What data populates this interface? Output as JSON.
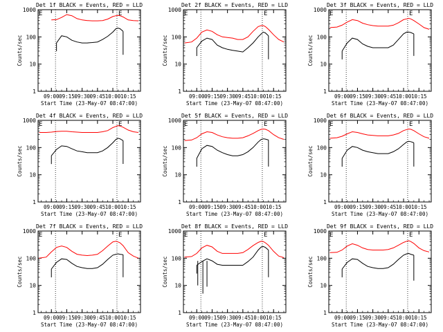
{
  "figure": {
    "xlabel": "Start Time (23-May-07 08:47:00)",
    "ylabel": "Counts/sec",
    "y_ticks": [
      "1",
      "10",
      "100",
      "1000"
    ],
    "x_ticks": [
      "09:00",
      "09:15",
      "09:30",
      "09:45",
      "10:00",
      "10:15"
    ],
    "colors": {
      "events": "#000000",
      "lld": "#ff0000",
      "background": "#ffffff"
    }
  },
  "chart_data": [
    {
      "type": "line",
      "title": "Det 1f BLACK = Events, RED = LLD",
      "xlabel": "Start Time (23-May-07 08:47:00)",
      "ylabel": "Counts/sec",
      "ylim": [
        1,
        1000
      ],
      "yscale": "log",
      "xlim": [
        "08:47",
        "10:27"
      ],
      "x_ticks": [
        "09:00",
        "09:15",
        "09:30",
        "09:45",
        "10:00",
        "10:15"
      ],
      "markers": [
        {
          "x": "09:04",
          "label": ""
        },
        {
          "x": "10:04",
          "label": "E"
        }
      ],
      "x": [
        "09:00",
        "09:05",
        "09:10",
        "09:15",
        "09:20",
        "09:25",
        "09:30",
        "09:35",
        "09:40",
        "09:45",
        "09:50",
        "09:55",
        "10:00",
        "10:03",
        "10:05",
        "10:07",
        "10:10",
        "10:15",
        "10:20",
        "10:25"
      ],
      "series": [
        {
          "name": "BLACK = Events",
          "values": [
            null,
            60,
            110,
            100,
            75,
            65,
            60,
            60,
            62,
            65,
            80,
            105,
            150,
            200,
            210,
            200,
            160,
            null,
            null,
            null
          ],
          "end_drop": 22
        },
        {
          "name": "RED = LLD",
          "values": [
            420,
            430,
            520,
            660,
            600,
            470,
            420,
            400,
            390,
            390,
            400,
            450,
            560,
            600,
            620,
            600,
            540,
            420,
            400,
            390
          ]
        }
      ]
    },
    {
      "type": "line",
      "title": "Det 2f BLACK = Events, RED = LLD",
      "xlabel": "Start Time (23-May-07 08:47:00)",
      "ylabel": "Counts/sec",
      "ylim": [
        1,
        1000
      ],
      "yscale": "log",
      "xlim": [
        "08:47",
        "10:27"
      ],
      "x_ticks": [
        "09:00",
        "09:15",
        "09:30",
        "09:45",
        "10:00",
        "10:15"
      ],
      "markers": [
        {
          "x": "09:04",
          "label": ""
        },
        {
          "x": "10:04",
          "label": "E"
        }
      ],
      "x": [
        "08:48",
        "08:55",
        "09:00",
        "09:05",
        "09:10",
        "09:15",
        "09:20",
        "09:25",
        "09:30",
        "09:35",
        "09:40",
        "09:45",
        "09:50",
        "09:55",
        "10:00",
        "10:03",
        "10:05",
        "10:07",
        "10:10",
        "10:15",
        "10:20",
        "10:25"
      ],
      "series": [
        {
          "name": "BLACK = Events",
          "values": [
            null,
            null,
            40,
            70,
            90,
            80,
            50,
            40,
            35,
            32,
            30,
            28,
            40,
            60,
            100,
            130,
            150,
            140,
            110,
            null,
            null,
            null
          ],
          "end_drop": 15
        },
        {
          "name": "RED = LLD",
          "values": [
            60,
            65,
            90,
            150,
            180,
            160,
            120,
            100,
            95,
            90,
            80,
            80,
            100,
            160,
            240,
            260,
            260,
            240,
            190,
            120,
            80,
            65
          ]
        }
      ]
    },
    {
      "type": "line",
      "title": "Det 3f BLACK = Events, RED = LLD",
      "xlabel": "Start Time (23-May-07 08:47:00)",
      "ylabel": "Counts/sec",
      "ylim": [
        1,
        1000
      ],
      "yscale": "log",
      "xlim": [
        "08:47",
        "10:27"
      ],
      "x_ticks": [
        "09:00",
        "09:15",
        "09:30",
        "09:45",
        "10:00",
        "10:15"
      ],
      "markers": [
        {
          "x": "09:04",
          "label": ""
        },
        {
          "x": "10:04",
          "label": "E"
        }
      ],
      "x": [
        "08:48",
        "08:55",
        "09:00",
        "09:05",
        "09:10",
        "09:15",
        "09:20",
        "09:25",
        "09:30",
        "09:35",
        "09:40",
        "09:45",
        "09:50",
        "09:55",
        "10:00",
        "10:03",
        "10:05",
        "10:07",
        "10:10",
        "10:15",
        "10:20",
        "10:25"
      ],
      "series": [
        {
          "name": "BLACK = Events",
          "values": [
            null,
            null,
            30,
            60,
            90,
            80,
            55,
            45,
            40,
            40,
            40,
            40,
            50,
            80,
            130,
            150,
            150,
            145,
            130,
            null,
            null,
            null
          ],
          "end_drop": 20
        },
        {
          "name": "RED = LLD",
          "values": [
            220,
            230,
            270,
            350,
            430,
            400,
            320,
            280,
            260,
            250,
            250,
            250,
            270,
            330,
            430,
            460,
            480,
            460,
            400,
            300,
            220,
            190
          ]
        }
      ]
    },
    {
      "type": "line",
      "title": "Det 4f BLACK = Events, RED = LLD",
      "xlabel": "Start Time (23-May-07 08:47:00)",
      "ylabel": "Counts/sec",
      "ylim": [
        1,
        1000
      ],
      "yscale": "log",
      "xlim": [
        "08:47",
        "10:27"
      ],
      "x_ticks": [
        "09:00",
        "09:15",
        "09:30",
        "09:45",
        "10:00",
        "10:15"
      ],
      "markers": [
        {
          "x": "09:04",
          "label": ""
        },
        {
          "x": "10:04",
          "label": "E"
        }
      ],
      "x": [
        "08:48",
        "08:55",
        "09:00",
        "09:05",
        "09:10",
        "09:15",
        "09:20",
        "09:25",
        "09:30",
        "09:35",
        "09:40",
        "09:45",
        "09:50",
        "09:55",
        "10:00",
        "10:03",
        "10:05",
        "10:07",
        "10:10",
        "10:15",
        "10:20",
        "10:25"
      ],
      "series": [
        {
          "name": "BLACK = Events",
          "values": [
            null,
            null,
            50,
            85,
            115,
            110,
            90,
            75,
            70,
            65,
            65,
            65,
            75,
            100,
            150,
            200,
            220,
            210,
            180,
            null,
            null,
            null
          ],
          "end_drop": 25
        },
        {
          "name": "RED = LLD",
          "values": [
            360,
            360,
            370,
            390,
            400,
            400,
            380,
            370,
            360,
            360,
            360,
            360,
            380,
            420,
            540,
            600,
            640,
            620,
            560,
            440,
            380,
            360
          ]
        }
      ]
    },
    {
      "type": "line",
      "title": "Det 5f BLACK = Events, RED = LLD",
      "xlabel": "Start Time (23-May-07 08:47:00)",
      "ylabel": "Counts/sec",
      "ylim": [
        1,
        1000
      ],
      "yscale": "log",
      "xlim": [
        "08:47",
        "10:27"
      ],
      "x_ticks": [
        "09:00",
        "09:15",
        "09:30",
        "09:45",
        "10:00",
        "10:15"
      ],
      "markers": [
        {
          "x": "09:04",
          "label": ""
        },
        {
          "x": "10:04",
          "label": "E"
        }
      ],
      "x": [
        "08:48",
        "08:55",
        "09:00",
        "09:05",
        "09:10",
        "09:15",
        "09:20",
        "09:25",
        "09:30",
        "09:35",
        "09:40",
        "09:45",
        "09:50",
        "09:55",
        "10:00",
        "10:03",
        "10:05",
        "10:07",
        "10:10",
        "10:15",
        "10:20",
        "10:25"
      ],
      "series": [
        {
          "name": "BLACK = Events",
          "values": [
            null,
            null,
            40,
            90,
            120,
            110,
            80,
            65,
            55,
            50,
            50,
            55,
            70,
            100,
            160,
            200,
            210,
            205,
            190,
            null,
            null,
            null
          ],
          "end_drop": 20
        },
        {
          "name": "RED = LLD",
          "values": [
            180,
            190,
            230,
            320,
            380,
            360,
            290,
            250,
            230,
            220,
            220,
            230,
            270,
            330,
            420,
            470,
            480,
            470,
            420,
            300,
            230,
            200
          ]
        }
      ]
    },
    {
      "type": "line",
      "title": "Det 6f BLACK = Events, RED = LLD",
      "xlabel": "Start Time (23-May-07 08:47:00)",
      "ylabel": "Counts/sec",
      "ylim": [
        1,
        1000
      ],
      "yscale": "log",
      "xlim": [
        "08:47",
        "10:27"
      ],
      "x_ticks": [
        "09:00",
        "09:15",
        "09:30",
        "09:45",
        "10:00",
        "10:15"
      ],
      "markers": [
        {
          "x": "09:04",
          "label": ""
        },
        {
          "x": "10:04",
          "label": "E"
        }
      ],
      "x": [
        "08:48",
        "08:55",
        "09:00",
        "09:05",
        "09:10",
        "09:15",
        "09:20",
        "09:25",
        "09:30",
        "09:35",
        "09:40",
        "09:45",
        "09:50",
        "09:55",
        "10:00",
        "10:03",
        "10:05",
        "10:07",
        "10:10",
        "10:15",
        "10:20",
        "10:25"
      ],
      "series": [
        {
          "name": "BLACK = Events",
          "values": [
            null,
            null,
            40,
            80,
            110,
            100,
            80,
            70,
            65,
            60,
            60,
            60,
            70,
            90,
            130,
            160,
            170,
            165,
            150,
            null,
            null,
            null
          ],
          "end_drop": 20
        },
        {
          "name": "RED = LLD",
          "values": [
            220,
            230,
            260,
            320,
            380,
            360,
            320,
            290,
            280,
            270,
            270,
            270,
            290,
            330,
            420,
            460,
            480,
            470,
            420,
            320,
            250,
            220
          ]
        }
      ]
    },
    {
      "type": "line",
      "title": "Det 7f BLACK = Events, RED = LLD",
      "xlabel": "Start Time (23-May-07 08:47:00)",
      "ylabel": "Counts/sec",
      "ylim": [
        1,
        1000
      ],
      "yscale": "log",
      "xlim": [
        "08:47",
        "10:27"
      ],
      "x_ticks": [
        "09:00",
        "09:15",
        "09:30",
        "09:45",
        "10:00",
        "10:15"
      ],
      "markers": [
        {
          "x": "09:04",
          "label": ""
        },
        {
          "x": "10:04",
          "label": "E"
        }
      ],
      "x": [
        "08:48",
        "08:55",
        "09:00",
        "09:05",
        "09:10",
        "09:15",
        "09:20",
        "09:25",
        "09:30",
        "09:35",
        "09:40",
        "09:45",
        "09:50",
        "09:55",
        "10:00",
        "10:03",
        "10:05",
        "10:07",
        "10:10",
        "10:15",
        "10:20",
        "10:25"
      ],
      "series": [
        {
          "name": "BLACK = Events",
          "values": [
            null,
            null,
            40,
            70,
            95,
            90,
            65,
            50,
            45,
            42,
            42,
            45,
            60,
            90,
            130,
            140,
            145,
            140,
            135,
            null,
            null,
            null
          ],
          "end_drop": 20
        },
        {
          "name": "RED = LLD",
          "values": [
            100,
            110,
            170,
            250,
            280,
            250,
            180,
            140,
            130,
            125,
            130,
            140,
            190,
            280,
            400,
            420,
            400,
            370,
            290,
            160,
            120,
            100
          ]
        }
      ]
    },
    {
      "type": "line",
      "title": "Det 8f BLACK = Events, RED = LLD",
      "xlabel": "Start Time (23-May-07 08:47:00)",
      "ylabel": "Counts/sec",
      "ylim": [
        1,
        1000
      ],
      "yscale": "log",
      "xlim": [
        "08:47",
        "10:27"
      ],
      "x_ticks": [
        "09:00",
        "09:15",
        "09:30",
        "09:45",
        "10:00",
        "10:15"
      ],
      "markers": [
        {
          "x": "09:04",
          "label": ""
        },
        {
          "x": "10:04",
          "label": "E"
        }
      ],
      "x": [
        "08:48",
        "08:55",
        "09:00",
        "09:05",
        "09:10",
        "09:15",
        "09:20",
        "09:25",
        "09:30",
        "09:35",
        "09:40",
        "09:45",
        "09:50",
        "09:55",
        "10:00",
        "10:03",
        "10:05",
        "10:07",
        "10:10",
        "10:15",
        "10:20",
        "10:25"
      ],
      "series": [
        {
          "name": "BLACK = Events",
          "values": [
            null,
            null,
            55,
            75,
            95,
            80,
            60,
            55,
            55,
            55,
            55,
            55,
            75,
            110,
            200,
            260,
            270,
            250,
            200,
            null,
            null,
            null
          ],
          "end_drop": 20,
          "spikes": [
            {
              "x": "09:01",
              "value": 10
            },
            {
              "x": "09:06",
              "value": 5
            },
            {
              "x": "09:10",
              "value": 9
            }
          ]
        },
        {
          "name": "RED = LLD",
          "values": [
            110,
            115,
            150,
            240,
            300,
            260,
            180,
            150,
            150,
            150,
            150,
            160,
            210,
            290,
            380,
            420,
            410,
            370,
            300,
            180,
            120,
            105
          ]
        }
      ]
    },
    {
      "type": "line",
      "title": "Det 9f BLACK = Events, RED = LLD",
      "xlabel": "Start Time (23-May-07 08:47:00)",
      "ylabel": "Counts/sec",
      "ylim": [
        1,
        1000
      ],
      "yscale": "log",
      "xlim": [
        "08:47",
        "10:27"
      ],
      "x_ticks": [
        "09:00",
        "09:15",
        "09:30",
        "09:45",
        "10:00",
        "10:15"
      ],
      "markers": [
        {
          "x": "09:04",
          "label": ""
        },
        {
          "x": "10:04",
          "label": "E"
        }
      ],
      "x": [
        "08:48",
        "08:55",
        "09:00",
        "09:05",
        "09:10",
        "09:15",
        "09:20",
        "09:25",
        "09:30",
        "09:35",
        "09:40",
        "09:45",
        "09:50",
        "09:55",
        "10:00",
        "10:03",
        "10:05",
        "10:07",
        "10:10",
        "10:15",
        "10:20",
        "10:25"
      ],
      "series": [
        {
          "name": "BLACK = Events",
          "values": [
            null,
            null,
            40,
            70,
            95,
            90,
            65,
            50,
            45,
            42,
            42,
            45,
            60,
            90,
            130,
            145,
            150,
            140,
            130,
            null,
            null,
            null
          ],
          "end_drop": 15
        },
        {
          "name": "RED = LLD",
          "values": [
            160,
            165,
            200,
            280,
            340,
            300,
            240,
            210,
            200,
            200,
            200,
            210,
            240,
            300,
            380,
            420,
            440,
            410,
            350,
            240,
            190,
            170
          ]
        }
      ]
    }
  ]
}
